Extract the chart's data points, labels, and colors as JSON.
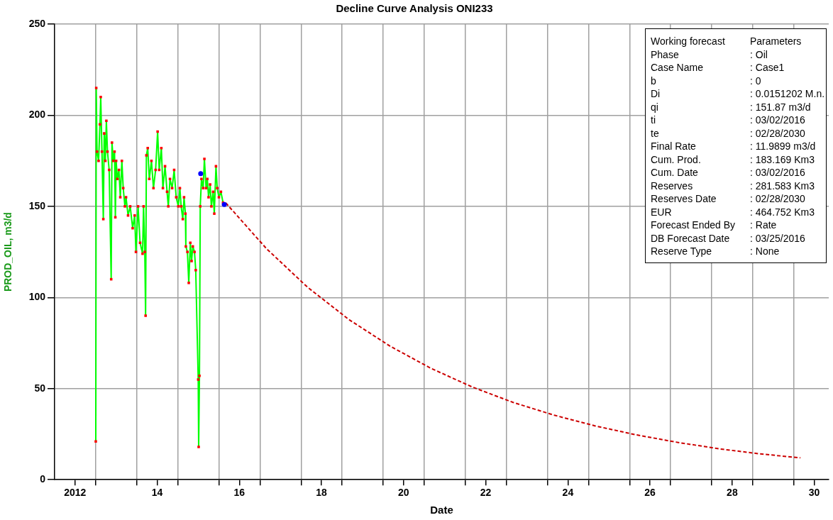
{
  "chart_data": {
    "type": "line",
    "title": "Decline Curve Analysis ONI233",
    "xlabel": "Date",
    "ylabel": "PROD_OIL, m3/d",
    "xlim": [
      "2012-01-01",
      "2030-11-07"
    ],
    "ylim": [
      0,
      250
    ],
    "xticks": [
      {
        "value": "2012-07-01",
        "label": "2012"
      },
      {
        "value": "2013-01-01",
        "label": null
      },
      {
        "value": "2014-01-01",
        "label": null
      },
      {
        "value": "2014-07-01",
        "label": "14"
      },
      {
        "value": "2015-01-01",
        "label": null
      },
      {
        "value": "2016-01-01",
        "label": null
      },
      {
        "value": "2016-07-01",
        "label": "16"
      },
      {
        "value": "2017-01-01",
        "label": null
      },
      {
        "value": "2018-01-01",
        "label": null
      },
      {
        "value": "2018-07-01",
        "label": "18"
      },
      {
        "value": "2019-01-01",
        "label": null
      },
      {
        "value": "2020-01-01",
        "label": null
      },
      {
        "value": "2020-07-01",
        "label": "20"
      },
      {
        "value": "2021-01-01",
        "label": null
      },
      {
        "value": "2022-01-01",
        "label": null
      },
      {
        "value": "2022-07-01",
        "label": "22"
      },
      {
        "value": "2023-01-01",
        "label": null
      },
      {
        "value": "2024-01-01",
        "label": null
      },
      {
        "value": "2024-07-01",
        "label": "24"
      },
      {
        "value": "2025-01-01",
        "label": null
      },
      {
        "value": "2026-01-01",
        "label": null
      },
      {
        "value": "2026-07-01",
        "label": "26"
      },
      {
        "value": "2027-01-01",
        "label": null
      },
      {
        "value": "2028-01-01",
        "label": null
      },
      {
        "value": "2028-07-01",
        "label": "28"
      },
      {
        "value": "2029-01-01",
        "label": null
      },
      {
        "value": "2030-01-01",
        "label": null
      },
      {
        "value": "2030-07-01",
        "label": "30"
      }
    ],
    "yticks": [
      0,
      50,
      100,
      150,
      200,
      250
    ],
    "grid": true,
    "series": [
      {
        "color": "#00ff00",
        "marker": "none",
        "x": [
          "2013-01-01",
          "2013-01-05",
          "2013-01-12",
          "2013-01-26",
          "2013-02-07",
          "2013-02-14",
          "2013-02-25",
          "2013-03-09",
          "2013-03-17",
          "2013-03-27",
          "2013-04-05",
          "2013-04-15",
          "2013-04-30",
          "2013-05-18",
          "2013-05-25",
          "2013-06-06",
          "2013-06-17",
          "2013-06-24",
          "2013-07-01",
          "2013-07-12",
          "2013-07-26",
          "2013-08-07",
          "2013-08-21",
          "2013-09-02",
          "2013-09-17",
          "2013-09-27",
          "2013-10-15",
          "2013-11-03",
          "2013-11-25",
          "2013-12-13",
          "2013-12-24",
          "2014-01-12",
          "2014-01-30",
          "2014-02-21",
          "2014-03-02",
          "2014-03-13",
          "2014-03-20",
          "2014-03-27",
          "2014-04-08",
          "2014-04-22",
          "2014-05-11",
          "2014-05-29",
          "2014-06-17",
          "2014-07-05",
          "2014-07-19",
          "2014-08-07",
          "2014-08-21",
          "2014-09-09",
          "2014-09-27",
          "2014-10-08",
          "2014-10-23",
          "2014-11-11",
          "2014-11-29",
          "2014-12-17",
          "2015-01-05",
          "2015-01-19",
          "2015-01-30",
          "2015-02-14",
          "2015-02-25",
          "2015-03-09",
          "2015-03-13",
          "2015-03-27",
          "2015-04-08",
          "2015-04-22",
          "2015-05-03",
          "2015-05-14",
          "2015-05-29",
          "2015-06-09",
          "2015-07-01",
          "2015-07-05",
          "2015-07-12",
          "2015-07-19",
          "2015-07-30",
          "2015-08-14",
          "2015-08-25",
          "2015-09-09",
          "2015-09-20",
          "2015-10-01",
          "2015-10-15",
          "2015-10-26",
          "2015-11-11",
          "2015-11-21",
          "2015-12-06",
          "2015-12-17",
          "2016-01-01",
          "2016-01-19",
          "2016-02-07",
          "2016-02-18"
        ],
        "values": [
          21,
          215,
          180,
          175,
          195,
          210,
          180,
          143,
          190,
          175,
          197,
          180,
          170,
          110,
          185,
          175,
          180,
          144,
          175,
          165,
          170,
          155,
          175,
          160,
          150,
          155,
          145,
          150,
          138,
          145,
          125,
          150,
          130,
          124,
          150,
          125,
          90,
          178,
          182,
          165,
          175,
          160,
          170,
          191,
          170,
          182,
          160,
          172,
          158,
          150,
          165,
          160,
          170,
          155,
          150,
          160,
          150,
          143,
          155,
          146,
          128,
          125,
          108,
          130,
          120,
          128,
          125,
          115,
          55,
          18,
          57,
          150,
          165,
          160,
          176,
          160,
          165,
          155,
          162,
          150,
          158,
          146,
          172,
          160,
          155,
          158,
          152,
          151
        ]
      },
      {
        "type": "scatter",
        "color": "#ff0000",
        "marker": "square",
        "x": [
          "2013-01-01",
          "2013-01-05",
          "2013-01-12",
          "2013-01-26",
          "2013-02-07",
          "2013-02-14",
          "2013-02-25",
          "2013-03-09",
          "2013-03-17",
          "2013-03-27",
          "2013-04-05",
          "2013-04-15",
          "2013-04-30",
          "2013-05-18",
          "2013-05-25",
          "2013-06-06",
          "2013-06-17",
          "2013-06-24",
          "2013-07-01",
          "2013-07-12",
          "2013-07-26",
          "2013-08-07",
          "2013-08-21",
          "2013-09-02",
          "2013-09-17",
          "2013-09-27",
          "2013-10-15",
          "2013-11-03",
          "2013-11-25",
          "2013-12-13",
          "2013-12-24",
          "2014-01-12",
          "2014-01-30",
          "2014-02-21",
          "2014-03-02",
          "2014-03-13",
          "2014-03-20",
          "2014-03-27",
          "2014-04-08",
          "2014-04-22",
          "2014-05-11",
          "2014-05-29",
          "2014-06-17",
          "2014-07-05",
          "2014-07-19",
          "2014-08-07",
          "2014-08-21",
          "2014-09-09",
          "2014-09-27",
          "2014-10-08",
          "2014-10-23",
          "2014-11-11",
          "2014-11-29",
          "2014-12-17",
          "2015-01-05",
          "2015-01-19",
          "2015-01-30",
          "2015-02-14",
          "2015-02-25",
          "2015-03-09",
          "2015-03-13",
          "2015-03-27",
          "2015-04-08",
          "2015-04-22",
          "2015-05-03",
          "2015-05-14",
          "2015-05-29",
          "2015-06-09",
          "2015-07-01",
          "2015-07-05",
          "2015-07-12",
          "2015-07-19",
          "2015-07-30",
          "2015-08-14",
          "2015-08-25",
          "2015-09-09",
          "2015-09-20",
          "2015-10-01",
          "2015-10-15",
          "2015-10-26",
          "2015-11-11",
          "2015-11-21",
          "2015-12-06",
          "2015-12-17",
          "2016-01-01",
          "2016-01-19",
          "2016-02-07"
        ],
        "values": [
          21,
          215,
          180,
          175,
          195,
          210,
          180,
          143,
          190,
          175,
          197,
          180,
          170,
          110,
          185,
          175,
          180,
          144,
          175,
          165,
          170,
          155,
          175,
          160,
          150,
          155,
          145,
          150,
          138,
          145,
          125,
          150,
          130,
          124,
          150,
          125,
          90,
          178,
          182,
          165,
          175,
          160,
          170,
          191,
          170,
          182,
          160,
          172,
          158,
          150,
          165,
          160,
          170,
          155,
          150,
          160,
          150,
          143,
          155,
          146,
          128,
          125,
          108,
          130,
          120,
          128,
          125,
          115,
          55,
          18,
          57,
          150,
          165,
          160,
          176,
          160,
          165,
          155,
          162,
          150,
          158,
          146,
          172,
          160,
          155,
          158,
          152
        ]
      },
      {
        "color": "#cc0000",
        "marker": "none",
        "line_style": "dashed",
        "x": [
          "2016-03-02",
          "2017-03-02",
          "2018-03-02",
          "2019-03-02",
          "2020-03-02",
          "2021-03-02",
          "2022-03-02",
          "2023-03-02",
          "2024-03-02",
          "2025-03-02",
          "2026-03-02",
          "2027-03-02",
          "2028-03-02",
          "2029-03-02",
          "2030-02-28"
        ],
        "values": [
          151.9,
          126.6,
          105.5,
          87.9,
          73.3,
          61.1,
          50.9,
          42.4,
          35.4,
          29.5,
          24.6,
          20.5,
          17.0,
          14.2,
          12.0
        ]
      },
      {
        "type": "scatter",
        "color": "#0000ff",
        "marker": "circle",
        "x": [
          "2015-07-23",
          "2016-02-18"
        ],
        "values": [
          168,
          151
        ]
      }
    ],
    "annotations": [
      "Working forecast",
      "Parameters",
      "Phase",
      ": Oil",
      "Case Name",
      ": Case1",
      "b",
      ": 0",
      "Di",
      ": 0.0151202 M.n.",
      "qi",
      ": 151.87 m3/d",
      "ti",
      ": 03/02/2016",
      "te",
      ": 02/28/2030",
      "Final Rate",
      ": 11.9899 m3/d",
      "Cum. Prod.",
      ": 183.169 Km3",
      "Cum. Date",
      ": 03/02/2016",
      "Reserves",
      ": 281.583 Km3",
      "Reserves Date",
      ": 02/28/2030",
      "EUR",
      ": 464.752 Km3",
      "Forecast Ended By",
      ": Rate",
      "DB Forecast Date",
      ": 03/25/2016",
      "Reserve Type",
      ": None"
    ]
  }
}
